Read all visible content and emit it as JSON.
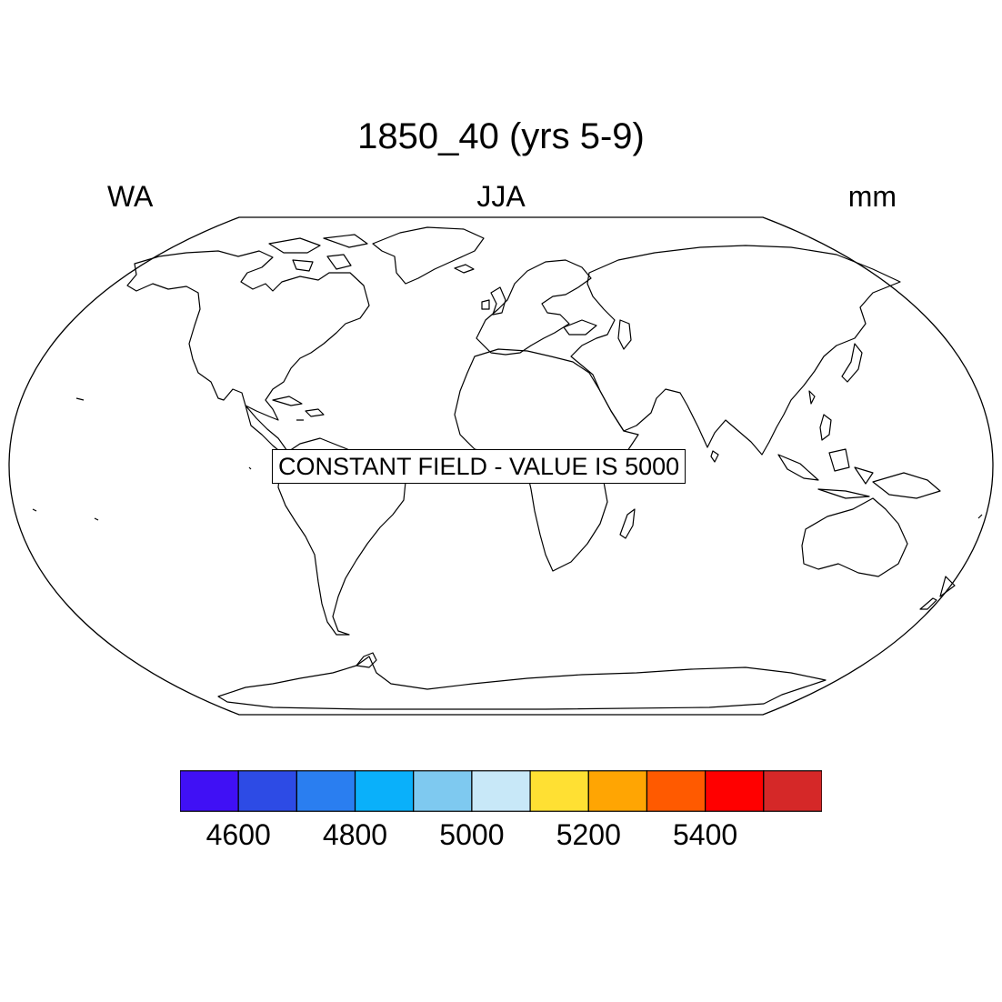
{
  "title": "1850_40 (yrs 5-9)",
  "left_label": "WA",
  "center_label": "JJA",
  "right_label": "mm",
  "map": {
    "projection": "Robinson",
    "field_note": "CONSTANT FIELD - VALUE IS 5000"
  },
  "colorbar": {
    "colors": [
      "#4010F5",
      "#2D4BE5",
      "#2A7EF0",
      "#0AB0FA",
      "#7EC9F0",
      "#C8E8F8",
      "#FFE033",
      "#FFA503",
      "#FF5A00",
      "#FF0000",
      "#D52828"
    ],
    "labels": [
      "4600",
      "4800",
      "5000",
      "5200",
      "5400"
    ]
  }
}
